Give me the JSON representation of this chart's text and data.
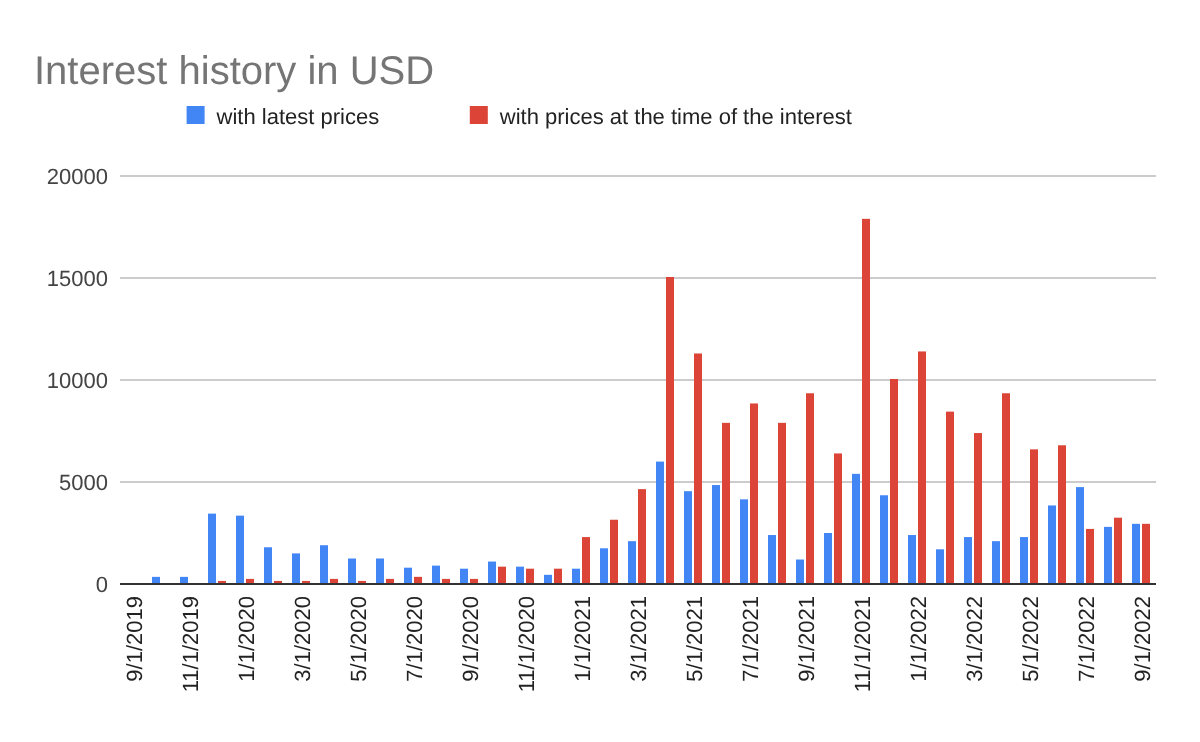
{
  "chart_data": {
    "type": "bar",
    "title": "Interest history in USD",
    "categories": [
      "9/1/2019",
      null,
      "11/1/2019",
      null,
      "1/1/2020",
      null,
      "3/1/2020",
      null,
      "5/1/2020",
      null,
      "7/1/2020",
      null,
      "9/1/2020",
      null,
      "11/1/2020",
      null,
      "1/1/2021",
      null,
      "3/1/2021",
      null,
      "5/1/2021",
      null,
      "7/1/2021",
      null,
      "9/1/2021",
      null,
      "11/1/2021",
      null,
      "1/1/2022",
      null,
      "3/1/2022",
      null,
      "5/1/2022",
      null,
      "7/1/2022",
      null,
      "9/1/2022"
    ],
    "series": [
      {
        "name": "with latest prices",
        "color": "#4285f4",
        "values": [
          0,
          350,
          350,
          3450,
          3350,
          1800,
          1500,
          1900,
          1250,
          1250,
          800,
          900,
          750,
          1100,
          850,
          450,
          750,
          1750,
          2100,
          6000,
          4550,
          4850,
          4150,
          2400,
          1200,
          2500,
          5400,
          4350,
          2400,
          1700,
          2300,
          2100,
          2300,
          3850,
          4750,
          2800,
          2950
        ]
      },
      {
        "name": "with prices at the time of the interest",
        "color": "#db4437",
        "values": [
          0,
          0,
          0,
          150,
          250,
          150,
          150,
          250,
          150,
          250,
          350,
          250,
          250,
          850,
          750,
          750,
          2300,
          3150,
          4650,
          15050,
          11300,
          7900,
          8850,
          7900,
          9350,
          6400,
          17900,
          10050,
          11400,
          8450,
          7400,
          9350,
          6600,
          6800,
          2700,
          3250,
          2950
        ]
      }
    ],
    "ylim": [
      0,
      20000
    ],
    "yticks": [
      0,
      5000,
      10000,
      15000,
      20000
    ],
    "grid": "y",
    "legend": "top"
  }
}
